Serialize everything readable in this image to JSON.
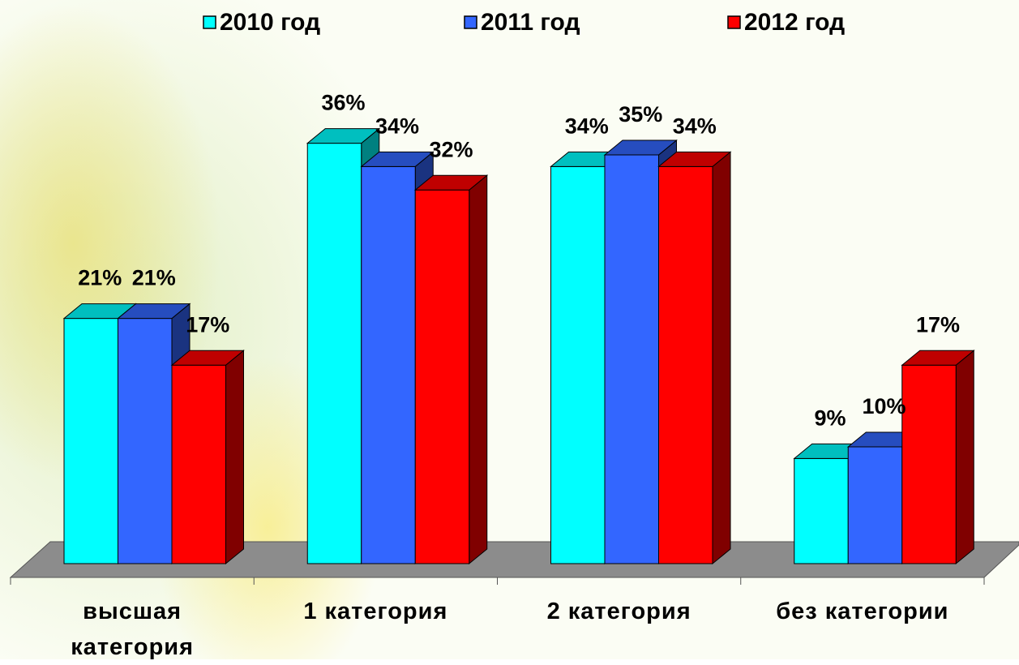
{
  "chart_data": {
    "type": "bar3d",
    "categories": [
      "высшая категория",
      "1 категория",
      "2 категория",
      "без категории"
    ],
    "series": [
      {
        "name": "2010 год",
        "color": "#00ffff",
        "values": [
          21,
          36,
          34,
          9
        ],
        "value_labels": [
          "21%",
          "36%",
          "34%",
          "9%"
        ]
      },
      {
        "name": "2011 год",
        "color": "#3366ff",
        "values": [
          21,
          34,
          35,
          10
        ],
        "value_labels": [
          "21%",
          "34%",
          "35%",
          "10%"
        ]
      },
      {
        "name": "2012 год",
        "color": "#ff0000",
        "values": [
          17,
          32,
          34,
          17
        ],
        "value_labels": [
          "17%",
          "32%",
          "34%",
          "17%"
        ]
      }
    ],
    "legend": "top"
  }
}
